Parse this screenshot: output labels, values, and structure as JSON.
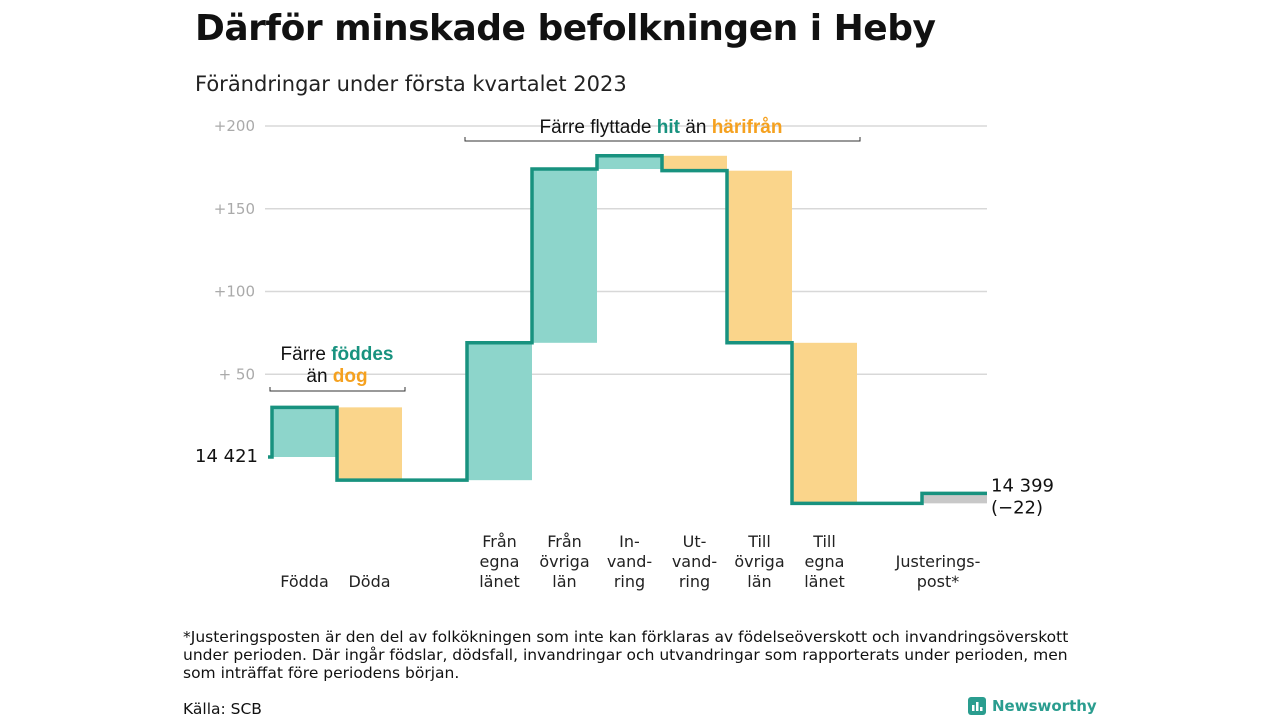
{
  "title": "Därför minskade befolkningen i Heby",
  "subtitle": "Förändringar under första kvartalet 2023",
  "colors": {
    "positive": "#8dd5cb",
    "negative": "#fad58b",
    "adjustment": "#c8c8c8",
    "line": "#18927f",
    "accent_teal": "#18927f",
    "accent_orange": "#f5a11f",
    "grid": "#d8d8d8"
  },
  "chart_data": {
    "type": "waterfall",
    "title": "Därför minskade befolkningen i Heby",
    "subtitle": "Förändringar under första kvartalet 2023",
    "y_ticks": [
      "+200",
      "+150",
      "+100",
      "+ 50"
    ],
    "y_tick_values": [
      200,
      150,
      100,
      50
    ],
    "ylim": [
      -35,
      205
    ],
    "grid": true,
    "start_label": "14 421",
    "end_label_lines": [
      "14 399",
      "(−22)"
    ],
    "start_value": 0,
    "end_value": -22,
    "steps": [
      {
        "label_lines": [
          "Födda"
        ],
        "delta": 30,
        "kind": "in"
      },
      {
        "label_lines": [
          "Döda"
        ],
        "delta": -44,
        "kind": "out"
      },
      {
        "label_lines": [
          "Från",
          "egna",
          "länet"
        ],
        "delta": 83,
        "kind": "in"
      },
      {
        "label_lines": [
          "Från",
          "övriga",
          "län"
        ],
        "delta": 105,
        "kind": "in"
      },
      {
        "label_lines": [
          "In-",
          "vand-",
          "ring"
        ],
        "delta": 8,
        "kind": "in"
      },
      {
        "label_lines": [
          "Ut-",
          "vand-",
          "ring"
        ],
        "delta": -9,
        "kind": "out"
      },
      {
        "label_lines": [
          "Till",
          "övriga",
          "län"
        ],
        "delta": -104,
        "kind": "out"
      },
      {
        "label_lines": [
          "Till",
          "egna",
          "länet"
        ],
        "delta": -97,
        "kind": "out"
      },
      {
        "label_lines": [
          "Justerings-",
          "post*"
        ],
        "delta": 6,
        "kind": "adjust"
      }
    ],
    "annotations": [
      {
        "parts": [
          {
            "text": "Färre ",
            "style": "normal"
          },
          {
            "text": "föddes",
            "style": "teal"
          }
        ],
        "parts2": [
          {
            "text": "än ",
            "style": "normal"
          },
          {
            "text": "dog",
            "style": "orange"
          }
        ]
      },
      {
        "parts": [
          {
            "text": "Färre flyttade ",
            "style": "normal"
          },
          {
            "text": "hit",
            "style": "teal"
          },
          {
            "text": " än ",
            "style": "normal"
          },
          {
            "text": "härifrån",
            "style": "orange"
          }
        ]
      }
    ]
  },
  "footnote": "*Justeringsposten är den del av folkökningen som inte kan förklaras av födelseöverskott och invandringsöverskott under perioden. Där ingår födslar, dödsfall, invandringar och utvandringar som rapporterats under perioden, men som inträffat före periodens början.",
  "source": "Källa: SCB",
  "brand": "Newsworthy"
}
